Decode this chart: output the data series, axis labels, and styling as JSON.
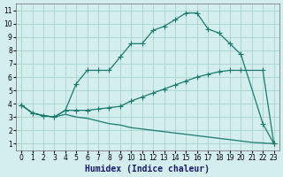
{
  "xlabel": "Humidex (Indice chaleur)",
  "bg_color": "#d4eeed",
  "grid_color": "#a8d4d0",
  "line_color": "#1a7a6e",
  "xlim": [
    -0.5,
    23.5
  ],
  "ylim": [
    0.5,
    11.5
  ],
  "xticks": [
    0,
    1,
    2,
    3,
    4,
    5,
    6,
    7,
    8,
    9,
    10,
    11,
    12,
    13,
    14,
    15,
    16,
    17,
    18,
    19,
    20,
    21,
    22,
    23
  ],
  "yticks": [
    1,
    2,
    3,
    4,
    5,
    6,
    7,
    8,
    9,
    10,
    11
  ],
  "upper_x": [
    0,
    1,
    2,
    3,
    4,
    5,
    6,
    7,
    8,
    9,
    10,
    11,
    12,
    13,
    14,
    15,
    16,
    17,
    18,
    19,
    20,
    22,
    23
  ],
  "upper_y": [
    3.9,
    3.3,
    3.1,
    3.0,
    3.5,
    5.5,
    6.5,
    6.5,
    6.5,
    7.5,
    8.5,
    8.5,
    9.5,
    9.8,
    10.3,
    10.8,
    10.8,
    9.6,
    9.3,
    8.5,
    7.7,
    2.5,
    1.0
  ],
  "middle_x": [
    0,
    1,
    2,
    3,
    4,
    5,
    6,
    7,
    8,
    9,
    10,
    11,
    12,
    13,
    14,
    15,
    16,
    17,
    18,
    19,
    20,
    22,
    23
  ],
  "middle_y": [
    3.9,
    3.3,
    3.1,
    3.0,
    3.5,
    3.5,
    3.5,
    3.6,
    3.7,
    3.8,
    4.2,
    4.5,
    4.8,
    5.1,
    5.4,
    5.7,
    6.0,
    6.2,
    6.4,
    6.5,
    6.5,
    6.5,
    1.0
  ],
  "lower_x": [
    0,
    1,
    2,
    3,
    4,
    5,
    6,
    7,
    8,
    9,
    10,
    11,
    12,
    13,
    14,
    15,
    16,
    17,
    18,
    19,
    20,
    21,
    22,
    23
  ],
  "lower_y": [
    3.9,
    3.3,
    3.1,
    3.0,
    3.2,
    3.0,
    2.9,
    2.7,
    2.5,
    2.4,
    2.2,
    2.1,
    2.0,
    1.9,
    1.8,
    1.7,
    1.6,
    1.5,
    1.4,
    1.3,
    1.2,
    1.1,
    1.05,
    1.0
  ],
  "linewidth": 0.9,
  "markersize": 4,
  "xlabel_fontsize": 7,
  "tick_fontsize": 5.5
}
